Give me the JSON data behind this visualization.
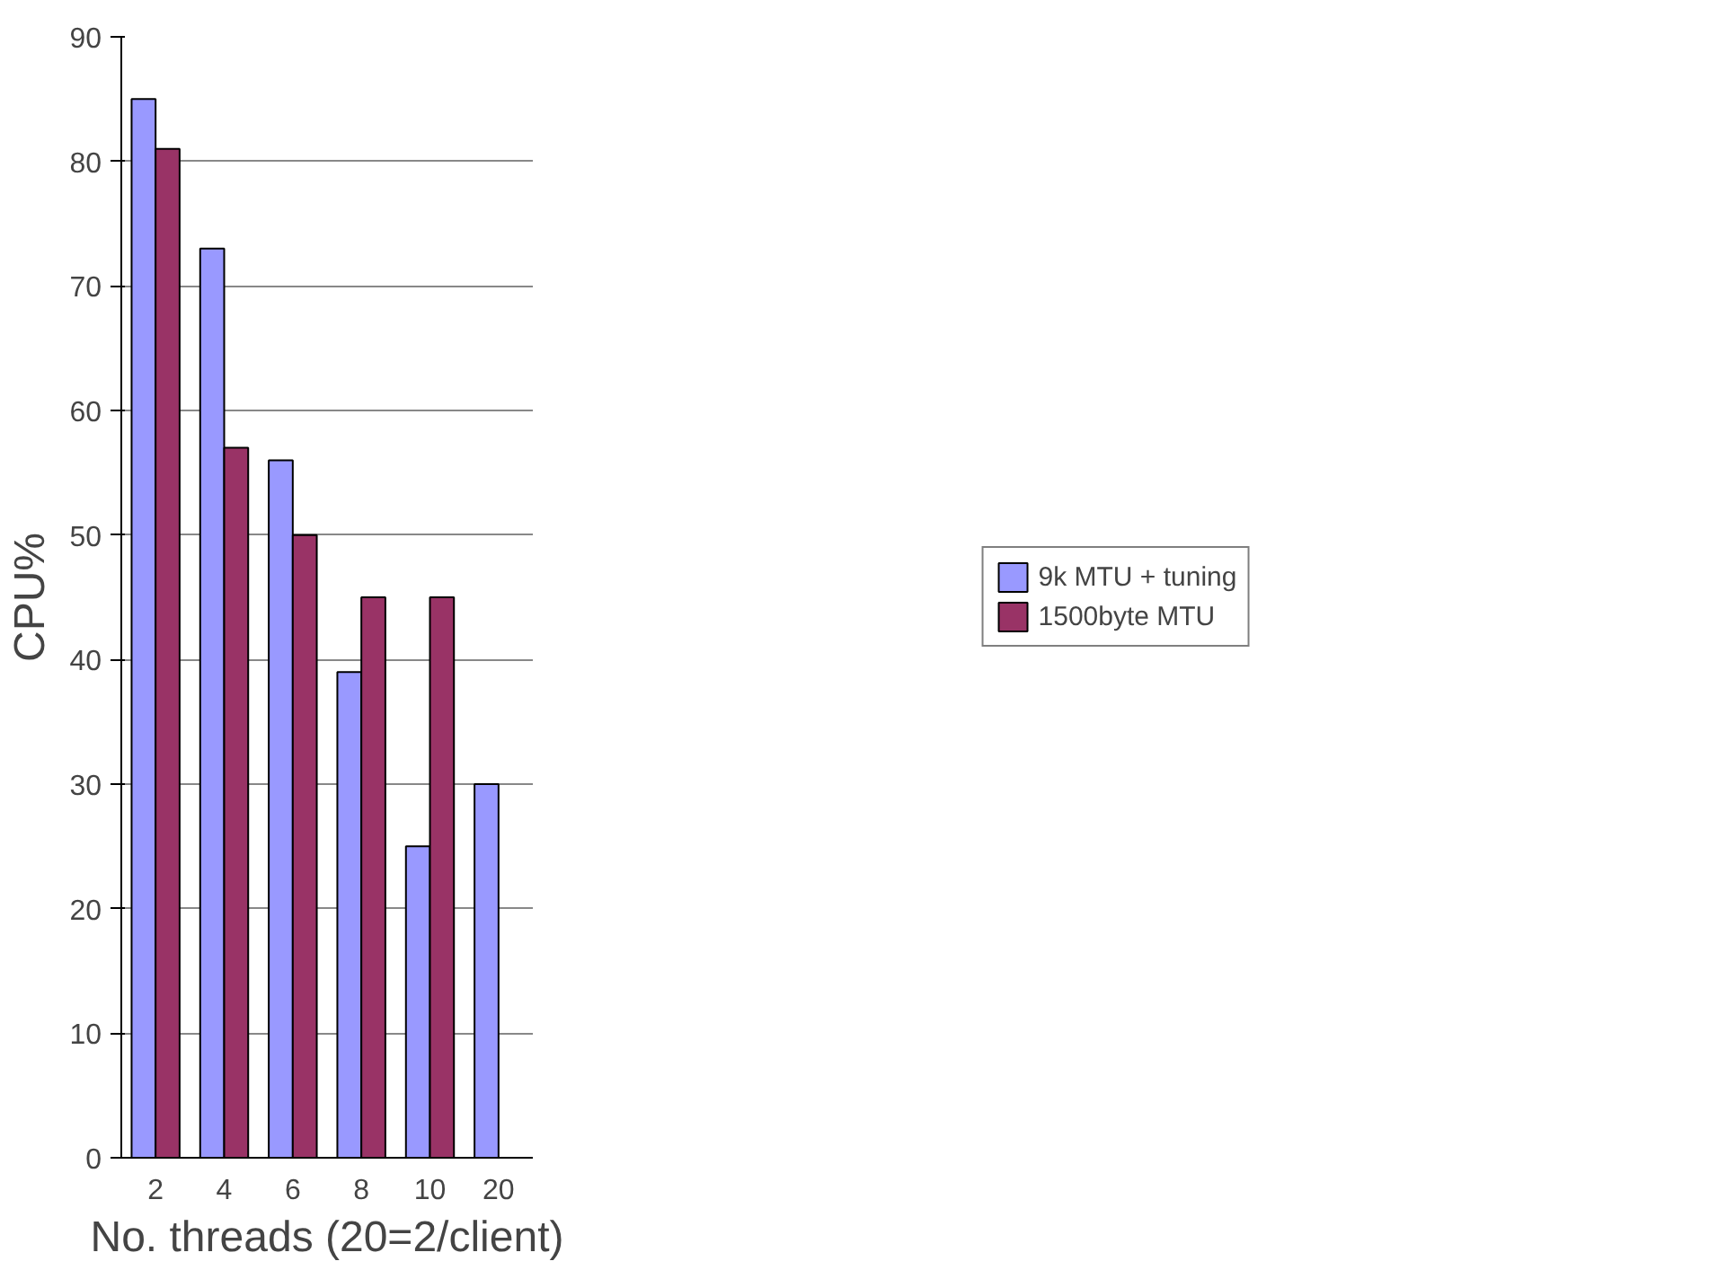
{
  "chart_data": {
    "type": "bar",
    "xlabel": "No. threads (20=2/client)",
    "ylabel": "CPU%",
    "categories": [
      "2",
      "4",
      "6",
      "8",
      "10",
      "20"
    ],
    "series": [
      {
        "name": "9k MTU + tuning",
        "color": "#9999ff",
        "values": [
          85,
          73,
          56,
          39,
          25,
          30
        ]
      },
      {
        "name": "1500byte MTU",
        "color": "#993366",
        "values": [
          81,
          57,
          50,
          45,
          45,
          null
        ]
      }
    ],
    "ylim": [
      0,
      90
    ],
    "yticks": [
      0,
      10,
      20,
      30,
      40,
      50,
      60,
      70,
      80,
      90
    ],
    "grid": "y",
    "legend": "right"
  }
}
